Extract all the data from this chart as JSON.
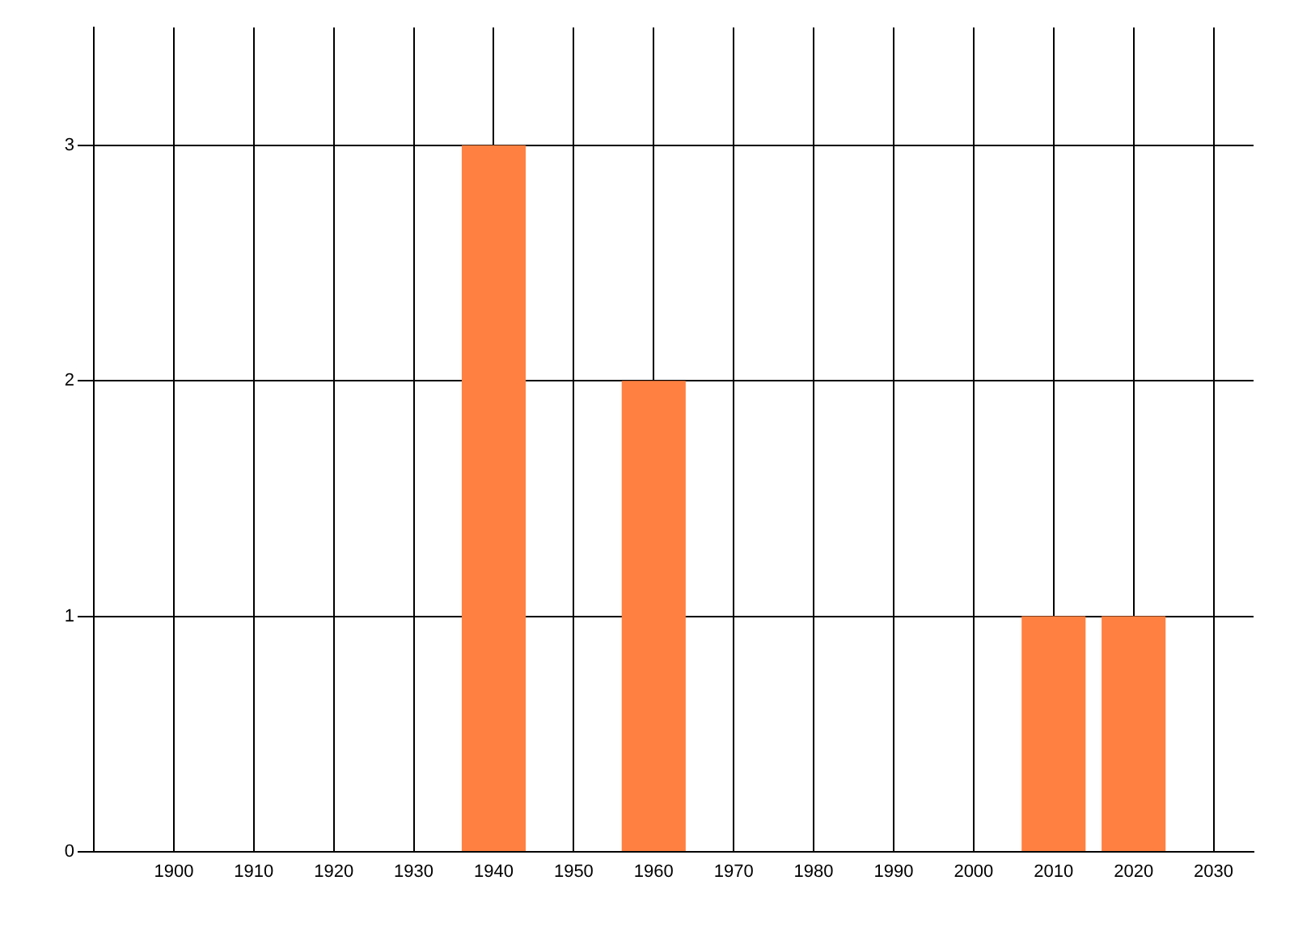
{
  "chart_data": {
    "type": "bar",
    "x": [
      1940,
      1960,
      2010,
      2020
    ],
    "values": [
      3,
      2,
      1,
      1
    ],
    "color": "#ff8040",
    "xlim": [
      1890,
      2035
    ],
    "xticks": [
      1900,
      1910,
      1920,
      1930,
      1940,
      1950,
      1960,
      1970,
      1980,
      1990,
      2000,
      2010,
      2020,
      2030
    ],
    "ylim": [
      0,
      3.5
    ],
    "yticks": [
      0,
      1,
      2,
      3
    ],
    "grid": true
  }
}
